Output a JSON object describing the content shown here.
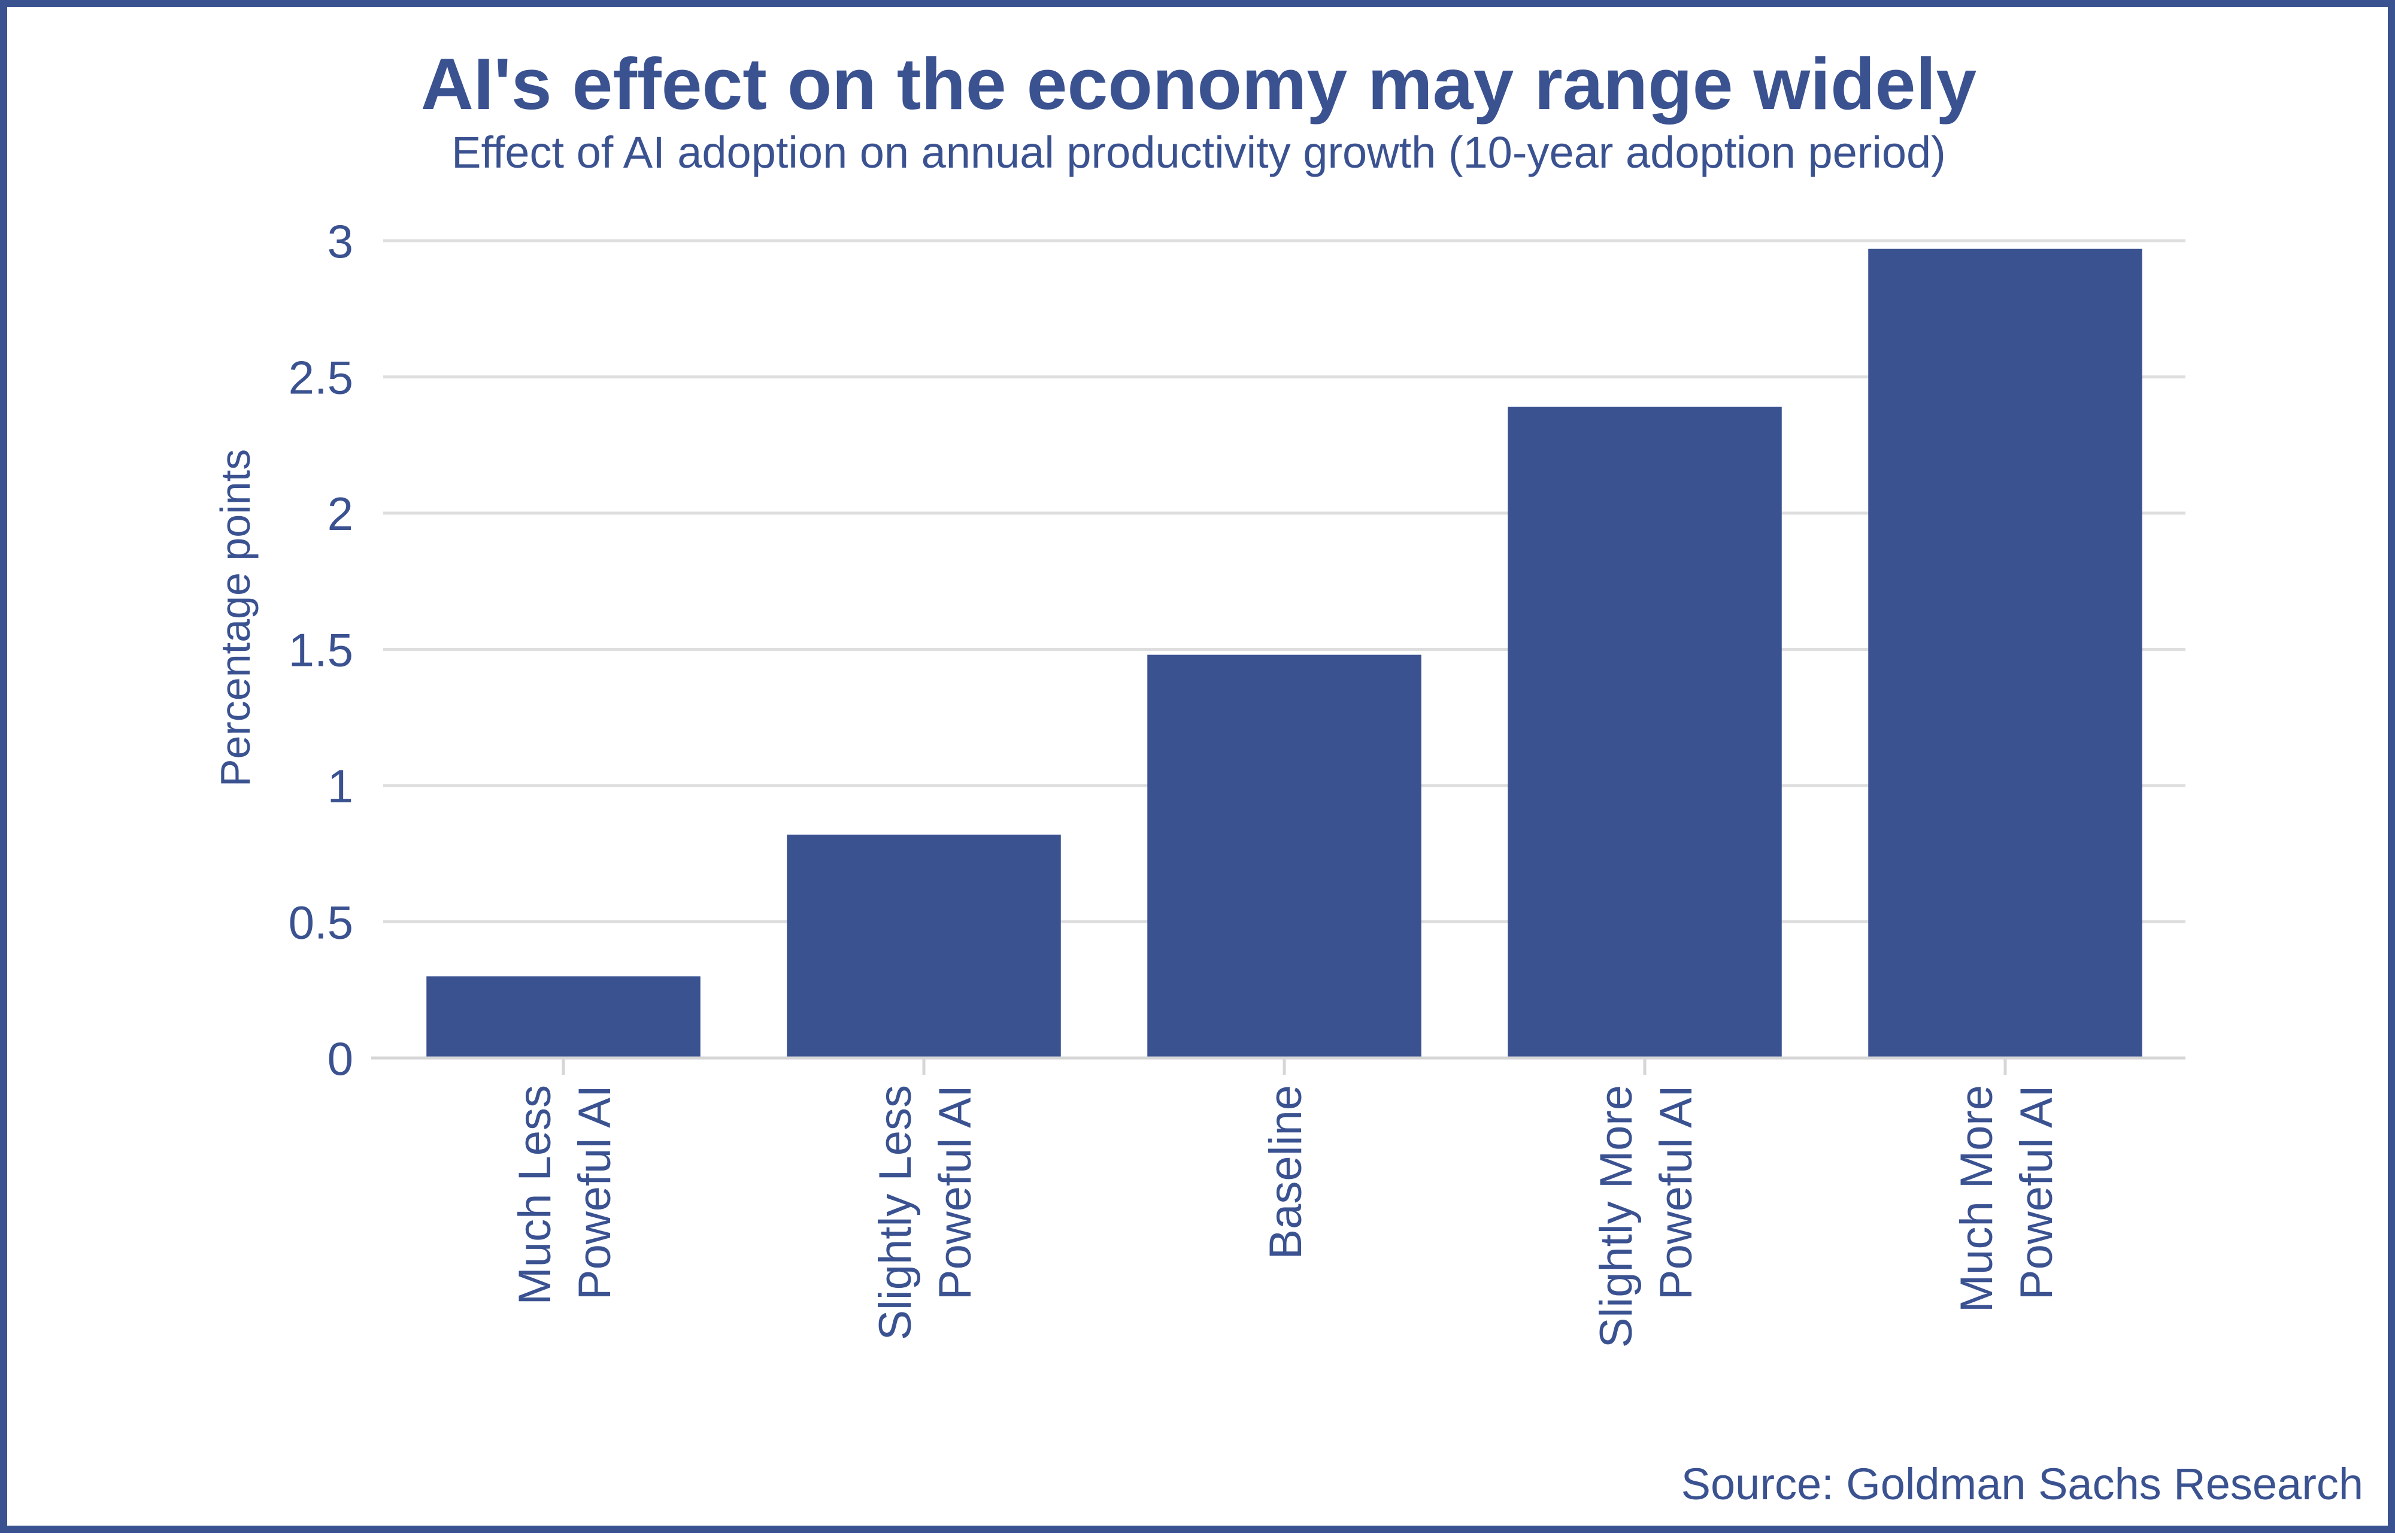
{
  "chart_data": {
    "type": "bar",
    "title": "AI's effect on the economy may range widely",
    "subtitle": "Effect of AI adoption on annual productivity growth (10-year adoption period)",
    "xlabel": "",
    "ylabel": "Percentage points",
    "categories": [
      [
        "Much Less",
        "Poweful AI"
      ],
      [
        "Slightly Less",
        "Poweful AI"
      ],
      [
        "Baseline"
      ],
      [
        "Slightly More",
        "Poweful AI"
      ],
      [
        "Much More",
        "Poweful AI"
      ]
    ],
    "values": [
      0.3,
      0.82,
      1.48,
      2.39,
      2.97
    ],
    "ylim": [
      0,
      3
    ],
    "yticks": [
      0,
      0.5,
      1,
      1.5,
      2,
      2.5,
      3
    ],
    "ytick_labels": [
      "0",
      "0.5",
      "1",
      "1.5",
      "2",
      "2.5",
      "3"
    ],
    "grid": true,
    "legend": "none",
    "bar_color": "#3b5291",
    "source": "Source: Goldman Sachs Research"
  }
}
